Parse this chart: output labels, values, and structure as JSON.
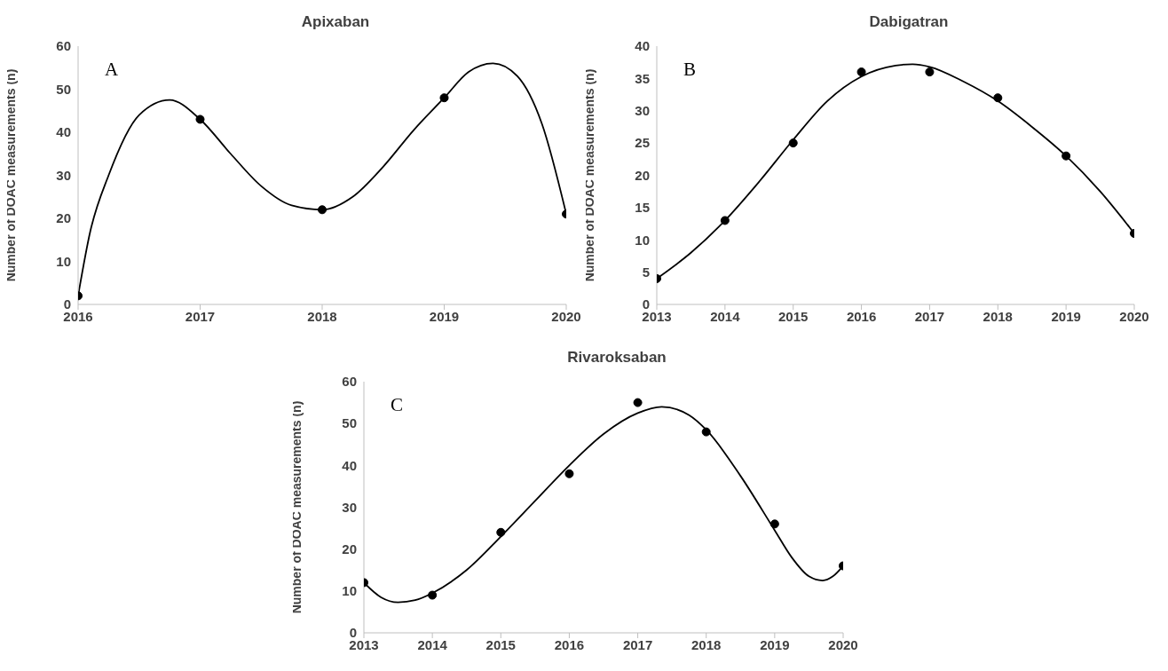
{
  "chart_data": [
    {
      "type": "scatter",
      "title": "Apixaban",
      "ylabel": "Number of DOAC measurements (n)",
      "xlim": [
        2016,
        2020
      ],
      "xticks": [
        2016,
        2017,
        2018,
        2019,
        2020
      ],
      "ylim": [
        0,
        60
      ],
      "yticks": [
        0,
        10,
        20,
        30,
        40,
        50,
        60
      ],
      "annotations": [
        "A"
      ],
      "series": [
        {
          "type": "scatter",
          "marker": "circle",
          "color": "#000000",
          "x": [
            2016,
            2017,
            2018,
            2019,
            2020
          ],
          "values": [
            2,
            43,
            22,
            48,
            21
          ]
        },
        {
          "type": "line",
          "marker": "none",
          "color": "#000000",
          "x": [
            2016,
            2016.1,
            2016.25,
            2016.5,
            2016.75,
            2017,
            2017.25,
            2017.5,
            2017.75,
            2018,
            2018.25,
            2018.5,
            2018.75,
            2019,
            2019.2,
            2019.4,
            2019.6,
            2019.8,
            2020
          ],
          "values": [
            2,
            17,
            30,
            44,
            47.5,
            43,
            35,
            27.5,
            23,
            22,
            25,
            32,
            40.5,
            48,
            54,
            56,
            53,
            42,
            21
          ]
        }
      ]
    },
    {
      "type": "scatter",
      "title": "Dabigatran",
      "ylabel": "Number of DOAC measurements (n)",
      "xlim": [
        2013,
        2020
      ],
      "xticks": [
        2013,
        2014,
        2015,
        2016,
        2017,
        2018,
        2019,
        2020
      ],
      "ylim": [
        0,
        40
      ],
      "yticks": [
        0,
        5,
        10,
        15,
        20,
        25,
        30,
        35,
        40
      ],
      "annotations": [
        "B"
      ],
      "series": [
        {
          "type": "scatter",
          "marker": "circle",
          "color": "#000000",
          "x": [
            2013,
            2014,
            2015,
            2016,
            2017,
            2018,
            2019,
            2020
          ],
          "values": [
            4,
            13,
            25,
            36,
            36,
            32,
            23,
            11
          ]
        },
        {
          "type": "line",
          "marker": "none",
          "color": "#000000",
          "x": [
            2013,
            2013.5,
            2014,
            2014.5,
            2015,
            2015.5,
            2016,
            2016.5,
            2016.75,
            2017,
            2017.5,
            2018,
            2018.5,
            2019,
            2019.5,
            2020
          ],
          "values": [
            4,
            8,
            13,
            19,
            25.5,
            31.5,
            35.3,
            37,
            37.2,
            36.8,
            34.5,
            31.5,
            27.5,
            23,
            17.5,
            11
          ]
        }
      ]
    },
    {
      "type": "scatter",
      "title": "Rivaroksaban",
      "ylabel": "Number of DOAC measurements (n)",
      "xlim": [
        2013,
        2020
      ],
      "xticks": [
        2013,
        2014,
        2015,
        2016,
        2017,
        2018,
        2019,
        2020
      ],
      "ylim": [
        0,
        60
      ],
      "yticks": [
        0,
        10,
        20,
        30,
        40,
        50,
        60
      ],
      "annotations": [
        "C"
      ],
      "series": [
        {
          "type": "scatter",
          "marker": "circle",
          "color": "#000000",
          "x": [
            2013,
            2014,
            2015,
            2016,
            2017,
            2018,
            2019,
            2020
          ],
          "values": [
            12,
            9,
            24,
            38,
            55,
            48,
            26,
            16
          ]
        },
        {
          "type": "line",
          "marker": "none",
          "color": "#000000",
          "x": [
            2013,
            2013.25,
            2013.5,
            2013.75,
            2014,
            2014.5,
            2015,
            2015.5,
            2016,
            2016.5,
            2017,
            2017.35,
            2017.75,
            2018,
            2018.5,
            2019,
            2019.25,
            2019.5,
            2019.7,
            2019.85,
            2020
          ],
          "values": [
            12,
            8.5,
            7.3,
            7.8,
            9.5,
            15,
            23,
            31.5,
            40,
            47.5,
            52.5,
            54,
            52,
            48.5,
            37.5,
            24.5,
            18,
            13.5,
            12.5,
            13.5,
            16
          ]
        }
      ]
    }
  ]
}
